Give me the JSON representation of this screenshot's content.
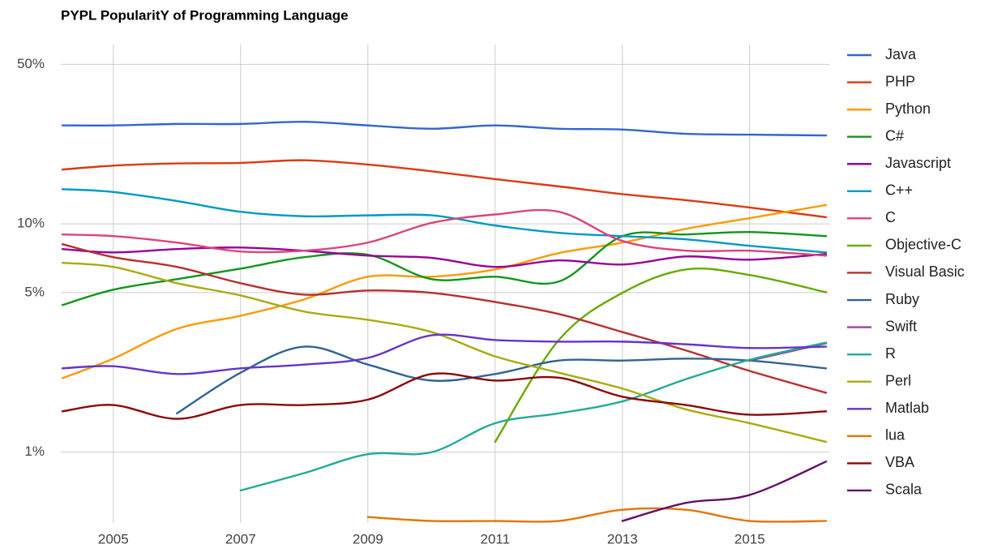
{
  "chart_data": {
    "type": "line",
    "title": "PYPL PopularitY of Programming Language",
    "y_scale": "log",
    "grid": true,
    "legend": "right",
    "x": [
      2004.2,
      2005,
      2006,
      2007,
      2008,
      2009,
      2010,
      2011,
      2012,
      2013,
      2014,
      2015,
      2016.2
    ],
    "xlim": [
      2004.2,
      2016.2
    ],
    "xticks": [
      2005,
      2007,
      2009,
      2011,
      2013,
      2015
    ],
    "ylim": [
      0.49,
      61
    ],
    "yticks": [
      {
        "value": 1,
        "label": "1%"
      },
      {
        "value": 5,
        "label": "5%"
      },
      {
        "value": 10,
        "label": "10%"
      },
      {
        "value": 50,
        "label": "50%"
      }
    ],
    "series": [
      {
        "name": "Java",
        "color": "#3366cc",
        "values": [
          27.0,
          27.0,
          27.4,
          27.4,
          28.0,
          27.0,
          26.1,
          27.0,
          26.1,
          25.9,
          24.8,
          24.6,
          24.4
        ]
      },
      {
        "name": "PHP",
        "color": "#dc3912",
        "values": [
          17.3,
          18.0,
          18.4,
          18.5,
          19.0,
          18.2,
          17.0,
          15.7,
          14.6,
          13.5,
          12.7,
          11.8,
          10.7
        ]
      },
      {
        "name": "Python",
        "color": "#ff9900",
        "values": [
          2.11,
          2.57,
          3.47,
          3.96,
          4.67,
          5.87,
          5.87,
          6.32,
          7.45,
          8.28,
          9.52,
          10.6,
          12.1
        ]
      },
      {
        "name": "C#",
        "color": "#109618",
        "values": [
          4.41,
          5.15,
          5.73,
          6.37,
          7.15,
          7.33,
          5.73,
          5.87,
          5.59,
          8.84,
          8.99,
          9.21,
          8.84
        ]
      },
      {
        "name": "Javascript",
        "color": "#990099",
        "values": [
          7.76,
          7.5,
          7.76,
          7.88,
          7.63,
          7.26,
          7.1,
          6.48,
          6.92,
          6.64,
          7.2,
          6.97,
          7.38
        ]
      },
      {
        "name": "C++",
        "color": "#0099c6",
        "values": [
          14.2,
          13.8,
          12.6,
          11.3,
          10.8,
          10.9,
          10.9,
          9.84,
          9.14,
          8.84,
          8.56,
          8.02,
          7.5
        ]
      },
      {
        "name": "C",
        "color": "#dd4477",
        "values": [
          8.99,
          8.84,
          8.28,
          7.57,
          7.63,
          8.28,
          10.1,
          11.0,
          11.3,
          8.42,
          7.63,
          7.63,
          7.26
        ]
      },
      {
        "name": "Objective-C",
        "color": "#66aa00",
        "values": [
          null,
          null,
          null,
          null,
          null,
          null,
          null,
          1.11,
          3.1,
          4.99,
          6.32,
          5.97,
          5.02
        ]
      },
      {
        "name": "Visual Basic",
        "color": "#b82e2e",
        "values": [
          8.15,
          7.15,
          6.48,
          5.5,
          4.9,
          5.11,
          4.99,
          4.55,
          4.03,
          3.36,
          2.79,
          2.27,
          1.82
        ]
      },
      {
        "name": "Ruby",
        "color": "#316395",
        "values": [
          null,
          null,
          1.48,
          2.23,
          2.9,
          2.42,
          2.06,
          2.2,
          2.52,
          2.52,
          2.57,
          2.52,
          2.33
        ]
      },
      {
        "name": "Swift",
        "color": "#994499",
        "values": [
          null,
          null,
          null,
          null,
          null,
          null,
          null,
          null,
          null,
          null,
          null,
          2.52,
          3.0
        ]
      },
      {
        "name": "R",
        "color": "#22aa99",
        "values": [
          null,
          null,
          null,
          0.68,
          0.81,
          0.98,
          1.0,
          1.34,
          1.48,
          1.67,
          2.09,
          2.54,
          3.02
        ]
      },
      {
        "name": "Perl",
        "color": "#aaaa11",
        "values": [
          6.75,
          6.48,
          5.5,
          4.86,
          4.13,
          3.8,
          3.36,
          2.63,
          2.23,
          1.9,
          1.54,
          1.34,
          1.11
        ]
      },
      {
        "name": "Matlab",
        "color": "#6633cc",
        "values": [
          2.33,
          2.38,
          2.2,
          2.33,
          2.42,
          2.59,
          3.25,
          3.1,
          3.05,
          3.05,
          2.97,
          2.86,
          2.9
        ]
      },
      {
        "name": "lua",
        "color": "#e67300",
        "values": [
          null,
          null,
          null,
          null,
          null,
          0.52,
          0.5,
          0.5,
          0.5,
          0.56,
          0.56,
          0.5,
          0.5
        ]
      },
      {
        "name": "VBA",
        "color": "#8b0707",
        "values": [
          1.51,
          1.61,
          1.4,
          1.61,
          1.61,
          1.7,
          2.2,
          2.06,
          2.12,
          1.75,
          1.61,
          1.46,
          1.51
        ]
      },
      {
        "name": "Scala",
        "color": "#651067",
        "values": [
          null,
          null,
          null,
          null,
          null,
          null,
          null,
          null,
          null,
          0.5,
          0.6,
          0.65,
          0.91
        ]
      }
    ]
  }
}
